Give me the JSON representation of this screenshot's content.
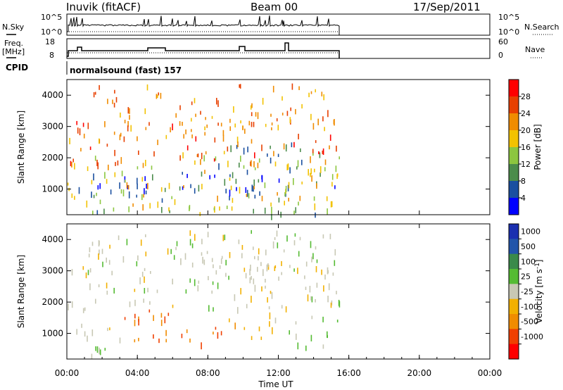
{
  "header": {
    "station": "Inuvik (fitACF)",
    "beam": "Beam 00",
    "date": "17/Sep/2011"
  },
  "noise_panel": {
    "left_label": "N.Sky",
    "right_label": "N.Search",
    "left_ticks": [
      "10^5",
      "10^0"
    ],
    "right_ticks": [
      "10^5",
      "10^0"
    ]
  },
  "freq_panel": {
    "left_label_1": "Freq.",
    "left_label_2": "[MHz]",
    "right_label": "Nave",
    "left_ticks": [
      "18",
      "8"
    ],
    "right_ticks": [
      "60",
      "0"
    ]
  },
  "cpid": {
    "label": "CPID",
    "value": "normalsound (fast) 157"
  },
  "x_axis": {
    "label": "Time UT",
    "ticks": [
      "00:00",
      "04:00",
      "08:00",
      "12:00",
      "16:00",
      "20:00",
      "00:00"
    ]
  },
  "colors": {
    "power": [
      "#0000ff",
      "#1a4fa0",
      "#4b8c4b",
      "#8cc63f",
      "#f2c200",
      "#f08c00",
      "#e84000",
      "#ff0000"
    ],
    "velocity": [
      "#ff0000",
      "#f04000",
      "#f08c00",
      "#f2b000",
      "#c8c8b4",
      "#55bb33",
      "#3a8a4a",
      "#2255aa",
      "#1a2fb0"
    ]
  },
  "chart_data": [
    {
      "type": "heatmap",
      "title": "Power",
      "xlabel": "",
      "ylabel": "Slant Range [km]",
      "xlim_hours": [
        0,
        24
      ],
      "ylim": [
        180,
        4500
      ],
      "yticks": [
        1000,
        2000,
        3000,
        4000
      ],
      "data_end_hour": 15.6,
      "colorbar": {
        "label": "Power [dB]",
        "ticks": [
          "28",
          "24",
          "20",
          "16",
          "12",
          "8",
          "4"
        ],
        "range": [
          0,
          32
        ]
      },
      "regions": [
        {
          "t": [
            0.0,
            15.6
          ],
          "r": [
            700,
            1600
          ],
          "value": 26
        },
        {
          "t": [
            8.2,
            14.5
          ],
          "r": [
            1500,
            2500
          ],
          "value": 24
        },
        {
          "t": [
            0.0,
            15.6
          ],
          "r": [
            400,
            2100
          ],
          "value": 14
        },
        {
          "t": [
            0.0,
            15.6
          ],
          "r": [
            1800,
            3300
          ],
          "value": 8
        },
        {
          "t": [
            1.0,
            15.0
          ],
          "r": [
            3000,
            4400
          ],
          "value": 10
        },
        {
          "t": [
            0.0,
            15.6
          ],
          "r": [
            200,
            450
          ],
          "value": 20
        }
      ]
    },
    {
      "type": "heatmap",
      "title": "Velocity",
      "xlabel": "Time UT",
      "ylabel": "Slant Range [km]",
      "xlim_hours": [
        0,
        24
      ],
      "ylim": [
        180,
        4500
      ],
      "yticks": [
        1000,
        2000,
        3000,
        4000
      ],
      "data_end_hour": 15.6,
      "colorbar": {
        "label": "Velocity [m s^-1]",
        "ticks": [
          "1000",
          "500",
          "100",
          "25",
          "-25",
          "-100",
          "-500",
          "-1000"
        ],
        "range": [
          -1200,
          1200
        ]
      },
      "regions": [
        {
          "t": [
            0.0,
            3.0
          ],
          "r": [
            300,
            1000
          ],
          "value": -200
        },
        {
          "t": [
            0.0,
            3.0
          ],
          "r": [
            1000,
            1500
          ],
          "value": 0
        },
        {
          "t": [
            3.0,
            9.0
          ],
          "r": [
            700,
            1800
          ],
          "value": 700
        },
        {
          "t": [
            9.0,
            12.0
          ],
          "r": [
            800,
            1700
          ],
          "value": 300
        },
        {
          "t": [
            12.5,
            15.6
          ],
          "r": [
            600,
            1600
          ],
          "value": -150
        },
        {
          "t": [
            0.0,
            15.6
          ],
          "r": [
            1800,
            4300
          ],
          "value": 0
        },
        {
          "t": [
            10.0,
            15.0
          ],
          "r": [
            2000,
            3500
          ],
          "value": 80
        }
      ]
    }
  ]
}
